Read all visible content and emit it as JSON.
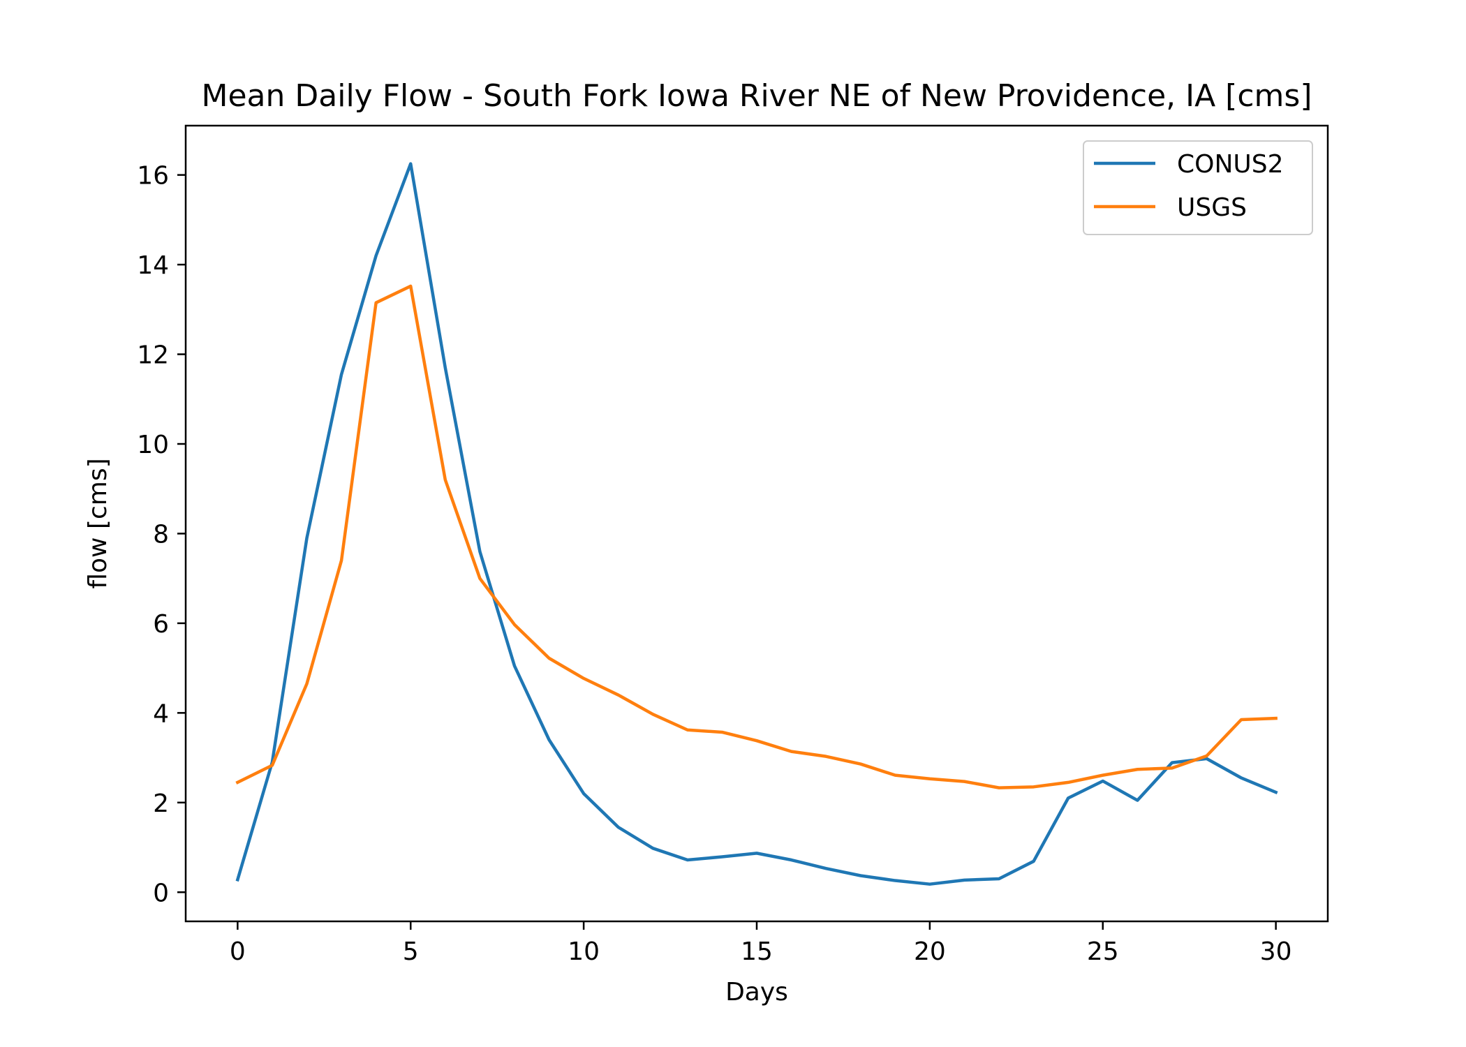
{
  "chart_data": {
    "type": "line",
    "title": "Mean Daily Flow - South Fork Iowa River NE of New Providence, IA [cms]",
    "xlabel": "Days",
    "ylabel": "flow [cms]",
    "xlim": [
      -1.5,
      31.5
    ],
    "ylim": [
      -0.65,
      17.1
    ],
    "xticks": [
      0,
      5,
      10,
      15,
      20,
      25,
      30
    ],
    "yticks": [
      0,
      2,
      4,
      6,
      8,
      10,
      12,
      14,
      16
    ],
    "grid": false,
    "legend_position": "upper right",
    "x": [
      0,
      1,
      2,
      3,
      4,
      5,
      6,
      7,
      8,
      9,
      10,
      11,
      12,
      13,
      14,
      15,
      16,
      17,
      18,
      19,
      20,
      21,
      22,
      23,
      24,
      25,
      26,
      27,
      28,
      29,
      30
    ],
    "series": [
      {
        "name": "CONUS2",
        "color": "#1f77b4",
        "values": [
          0.28,
          2.9,
          7.9,
          11.55,
          14.2,
          16.25,
          11.7,
          7.6,
          5.05,
          3.4,
          2.2,
          1.45,
          0.98,
          0.72,
          0.79,
          0.87,
          0.72,
          0.53,
          0.37,
          0.26,
          0.18,
          0.27,
          0.3,
          0.69,
          2.1,
          2.48,
          2.05,
          2.89,
          2.98,
          2.55,
          2.23
        ]
      },
      {
        "name": "USGS",
        "color": "#ff7f0e",
        "values": [
          2.45,
          2.83,
          4.65,
          7.4,
          13.15,
          13.52,
          9.2,
          7.0,
          5.97,
          5.22,
          4.77,
          4.4,
          3.97,
          3.62,
          3.57,
          3.38,
          3.14,
          3.03,
          2.86,
          2.61,
          2.53,
          2.47,
          2.33,
          2.35,
          2.45,
          2.61,
          2.74,
          2.77,
          3.04,
          3.85,
          3.88
        ]
      }
    ]
  }
}
